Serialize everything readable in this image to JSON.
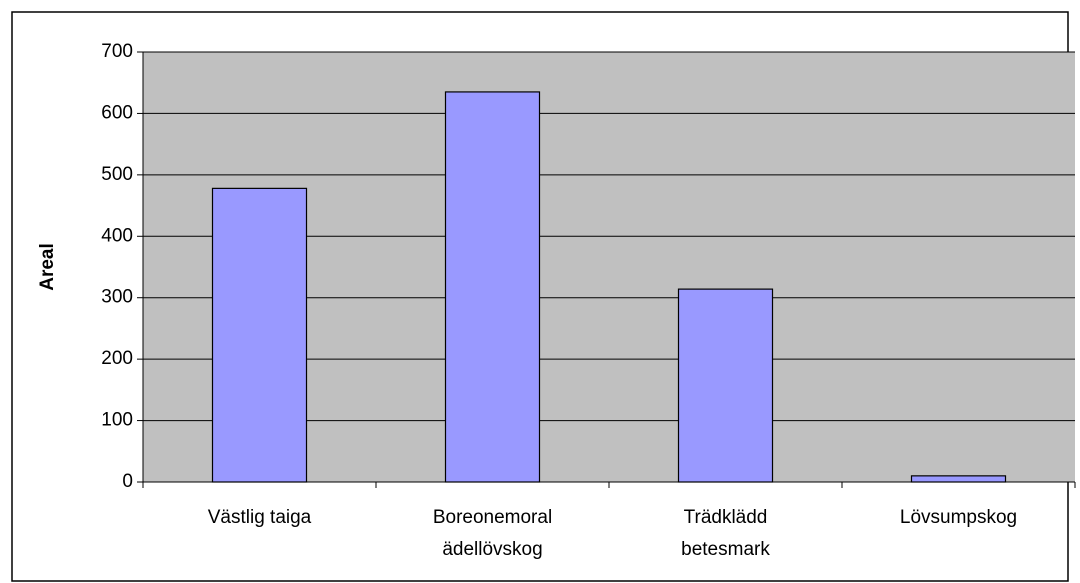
{
  "chart_data": {
    "type": "bar",
    "ylabel": "Areal",
    "categories": [
      "Västlig taiga",
      "Boreonemoral\nädellövskog",
      "Trädklädd\nbetesmark",
      "Lövsumpskog"
    ],
    "values": [
      478,
      635,
      314,
      10
    ],
    "color": "#9999ff",
    "ylim": [
      0,
      700
    ],
    "yticks": [
      0,
      100,
      200,
      300,
      400,
      500,
      600,
      700
    ],
    "grid": true
  }
}
